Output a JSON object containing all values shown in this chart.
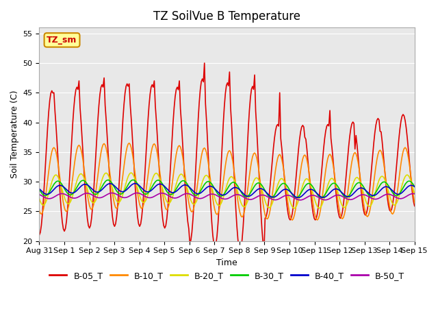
{
  "title": "TZ SoilVue B Temperature",
  "xlabel": "Time",
  "ylabel": "Soil Temperature (C)",
  "ylim": [
    20,
    56
  ],
  "yticks": [
    20,
    25,
    30,
    35,
    40,
    45,
    50,
    55
  ],
  "background_color": "#ffffff",
  "plot_bg_color": "#e8e8e8",
  "series": {
    "B-05_T": {
      "color": "#dd0000",
      "linewidth": 1.5
    },
    "B-10_T": {
      "color": "#ff8800",
      "linewidth": 1.5
    },
    "B-20_T": {
      "color": "#dddd00",
      "linewidth": 1.5
    },
    "B-30_T": {
      "color": "#00cc00",
      "linewidth": 1.5
    },
    "B-40_T": {
      "color": "#0000cc",
      "linewidth": 1.5
    },
    "B-50_T": {
      "color": "#aa00aa",
      "linewidth": 1.5
    }
  },
  "annotation_label": "TZ_sm",
  "annotation_bg": "#ffff99",
  "annotation_border": "#cc8800",
  "annotation_text_color": "#cc0000",
  "n_days": 15,
  "start_day": 0,
  "x_tick_labels": [
    "Aug 31",
    "Sep 1",
    "Sep 2",
    "Sep 3",
    "Sep 4",
    "Sep 5",
    "Sep 6",
    "Sep 7",
    "Sep 8",
    "Sep 9",
    "Sep 10",
    "Sep 11",
    "Sep 12",
    "Sep 13",
    "Sep 14",
    "Sep 15"
  ]
}
